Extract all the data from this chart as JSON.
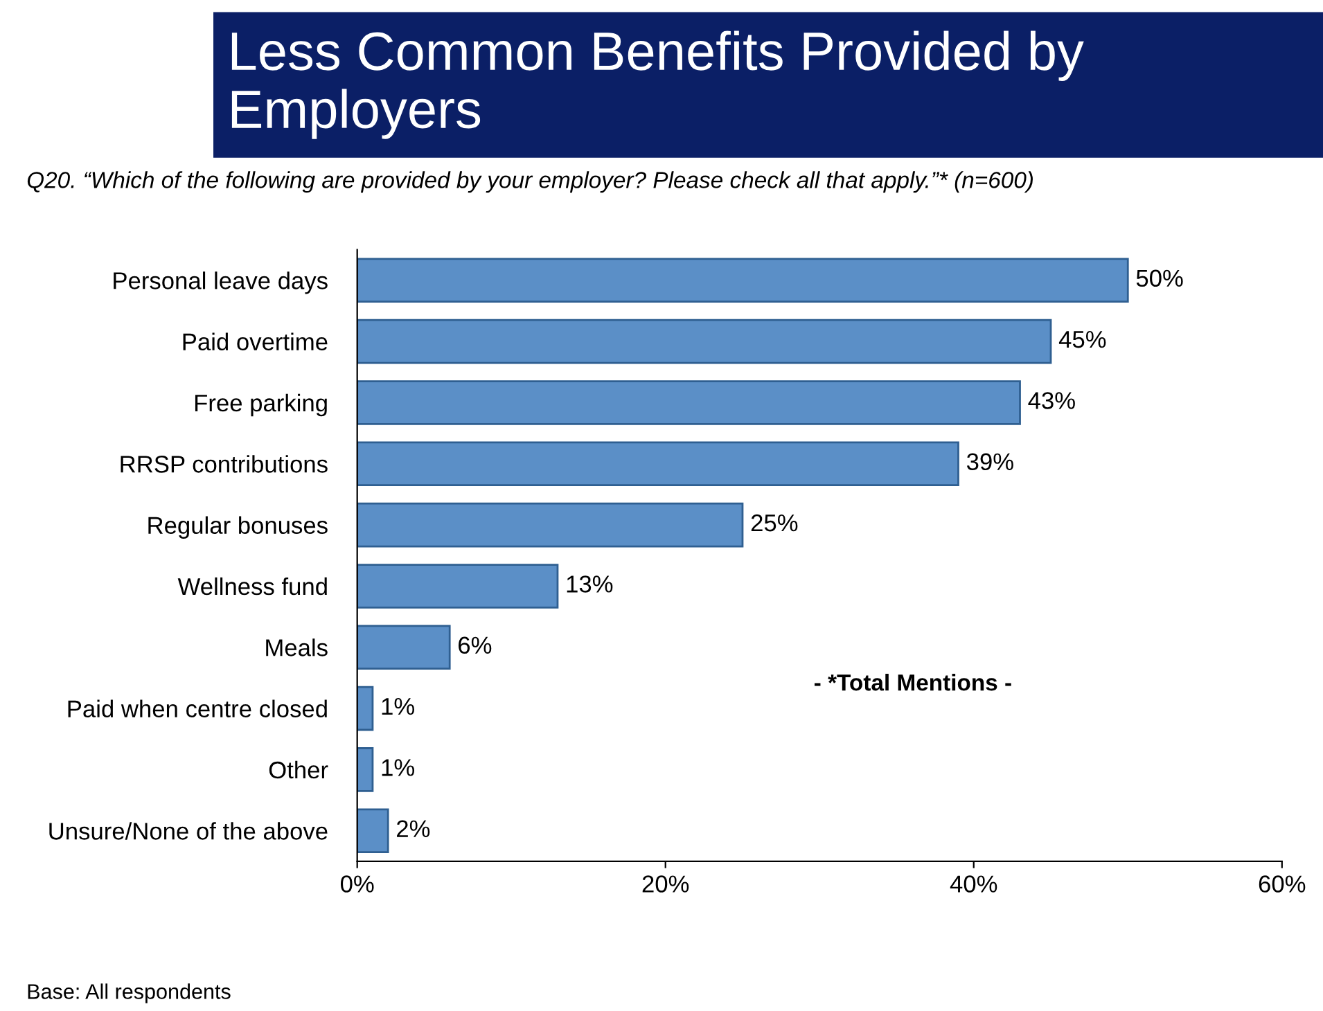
{
  "chart_data": {
    "type": "bar",
    "orientation": "horizontal",
    "title": "Less Common Benefits Provided by Employers",
    "subtitle": "Q20. “Which of the following are provided by your employer? Please check all that apply.”* (n=600)",
    "categories": [
      "Personal leave days",
      "Paid overtime",
      "Free parking",
      "RRSP contributions",
      "Regular bonuses",
      "Wellness fund",
      "Meals",
      "Paid when centre closed",
      "Other",
      "Unsure/None of the above"
    ],
    "values": [
      50,
      45,
      43,
      39,
      25,
      13,
      6,
      1,
      1,
      2
    ],
    "value_labels": [
      "50%",
      "45%",
      "43%",
      "39%",
      "25%",
      "13%",
      "6%",
      "1%",
      "1%",
      "2%"
    ],
    "color": "#5b8fc7",
    "xlim": [
      0,
      60
    ],
    "xticks": [
      {
        "value": 0,
        "label": "0%"
      },
      {
        "value": 20,
        "label": "20%"
      },
      {
        "value": 40,
        "label": "40%"
      },
      {
        "value": 60,
        "label": "60%"
      }
    ],
    "annotations": [
      "- *Total Mentions -",
      "Base: All respondents"
    ],
    "grid": false,
    "legend": false
  }
}
